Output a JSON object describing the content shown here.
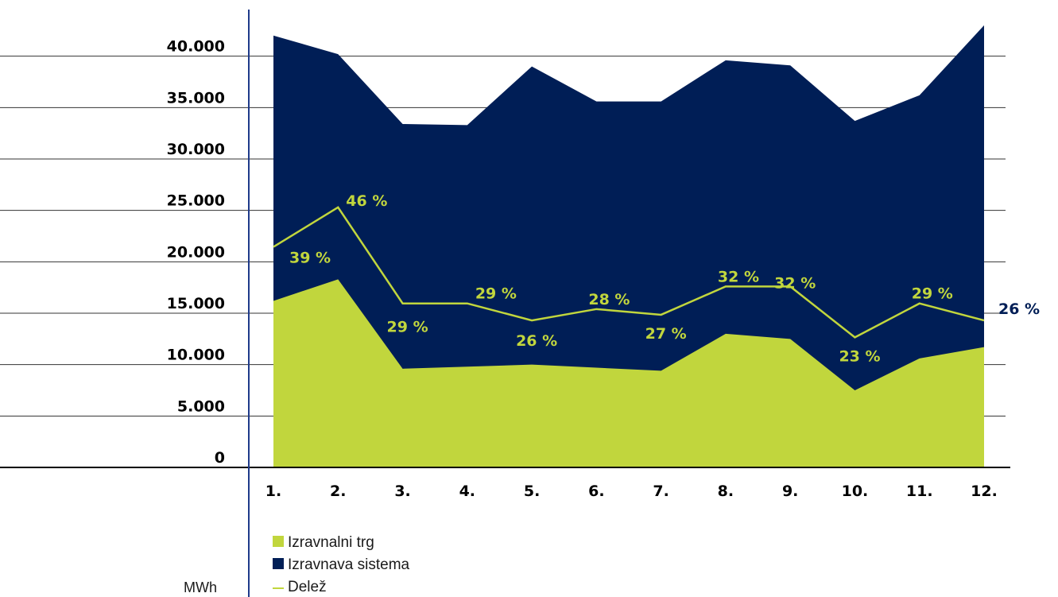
{
  "chart_data": {
    "type": "area",
    "title": "",
    "xlabel": "",
    "ylabel": "MWh",
    "categories": [
      "1.",
      "2.",
      "3.",
      "4.",
      "5.",
      "6.",
      "7.",
      "8.",
      "9.",
      "10.",
      "11.",
      "12."
    ],
    "y_ticks": [
      "0",
      "5.000",
      "10.000",
      "15.000",
      "20.000",
      "25.000",
      "30.000",
      "35.000",
      "40.000"
    ],
    "ylim": [
      0,
      45000
    ],
    "grid": true,
    "legend_position": "bottom-left",
    "series": [
      {
        "name": "Izravnava sistema",
        "type": "area",
        "color": "#001e56",
        "values": [
          42000,
          40200,
          33400,
          33300,
          39000,
          35600,
          35600,
          39600,
          39100,
          33700,
          36200,
          43000
        ]
      },
      {
        "name": "Izravnalni trg",
        "type": "area",
        "color": "#c1d63d",
        "values": [
          16200,
          18300,
          9600,
          9800,
          10000,
          9700,
          9400,
          13000,
          12500,
          7500,
          10600,
          11700
        ]
      },
      {
        "name": "Delež",
        "type": "line",
        "color": "#c1d63d",
        "values": [
          39,
          46,
          29,
          29,
          26,
          28,
          27,
          32,
          32,
          23,
          29,
          26
        ],
        "labels": [
          "39 %",
          "46 %",
          "29 %",
          "29 %",
          "26 %",
          "28 %",
          "27 %",
          "32 %",
          "32 %",
          "23 %",
          "29 %",
          "26 %"
        ]
      }
    ],
    "legend": [
      "Izravnalni trg",
      "Izravnava sistema",
      "Delež"
    ],
    "label_colors": {
      "default": "#c1d63d",
      "outside": "#001e56"
    }
  }
}
